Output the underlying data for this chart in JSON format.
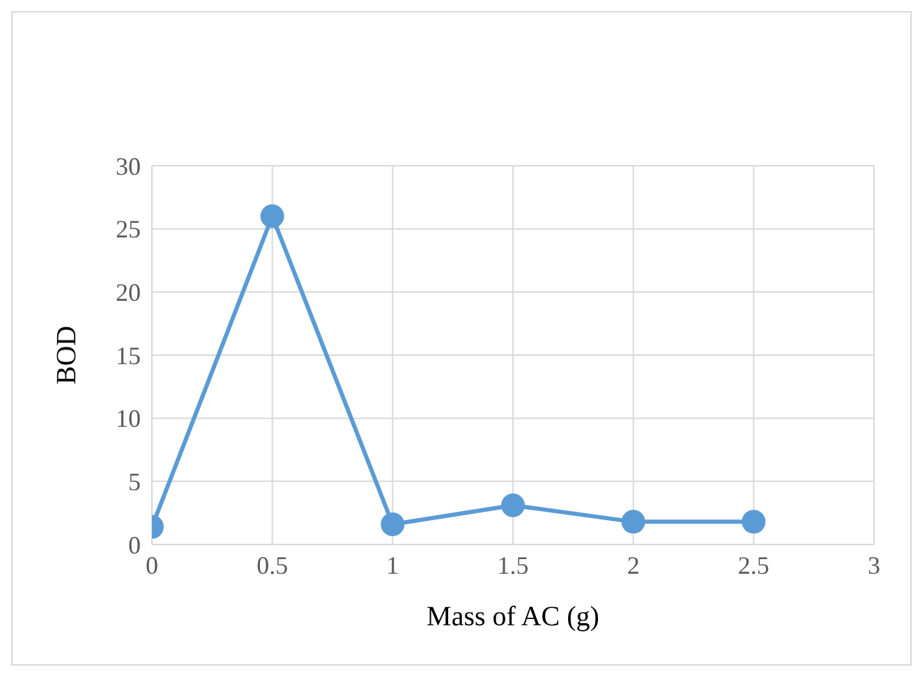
{
  "chart_data": {
    "type": "line",
    "xlabel": "Mass of AC (g)",
    "ylabel": "BOD",
    "x": [
      0,
      0.5,
      1,
      1.5,
      2,
      2.5
    ],
    "series": [
      {
        "color": "#5b9bd5",
        "values": [
          1.4,
          26,
          1.6,
          3.1,
          1.8,
          1.8
        ]
      }
    ],
    "xlim": [
      0,
      3
    ],
    "xticks": [
      0,
      0.5,
      1,
      1.5,
      2,
      2.5,
      3
    ],
    "ylim": [
      0,
      30
    ],
    "yticks": [
      0,
      5,
      10,
      15,
      20,
      25,
      30
    ],
    "grid": true,
    "marker": "circle",
    "line_style": "solid",
    "legend": false
  }
}
